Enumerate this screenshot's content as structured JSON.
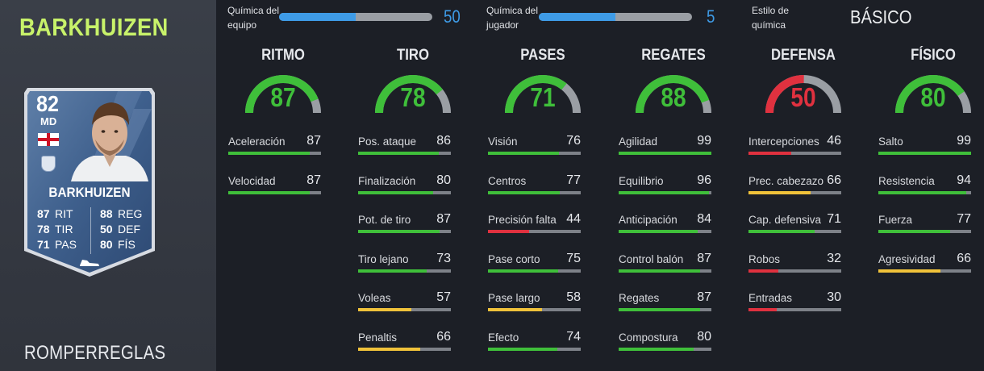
{
  "player": {
    "name": "BARKHUIZEN",
    "card_name": "BARKHUIZEN",
    "rating": "82",
    "position": "MD",
    "chem_style": "ROMPERREGLAS",
    "card_stats": [
      {
        "v1": "87",
        "l1": "RIT",
        "v2": "88",
        "l2": "REG"
      },
      {
        "v1": "78",
        "l1": "TIR",
        "v2": "50",
        "l2": "DEF"
      },
      {
        "v1": "71",
        "l1": "PAS",
        "v2": "80",
        "l2": "FÍS"
      }
    ]
  },
  "chemistry": {
    "team_label_1": "Química del",
    "team_label_2": "equipo",
    "team_value": "50",
    "team_fraction": 0.5,
    "player_label_1": "Química del",
    "player_label_2": "jugador",
    "player_value": "5",
    "player_fraction": 0.5,
    "style_label_1": "Estilo de",
    "style_label_2": "química",
    "style_value": "BÁSICO"
  },
  "colors": {
    "green": "#3fbf3a",
    "yellow": "#f0c23a",
    "red": "#e0313f",
    "blue": "#3e9be6",
    "lime_name": "#c8f26a"
  },
  "categories": [
    {
      "title": "RITMO",
      "value": "87",
      "color": "green",
      "stats": [
        {
          "label": "Aceleración",
          "value": "87",
          "color": "green"
        },
        {
          "label": "Velocidad",
          "value": "87",
          "color": "green"
        }
      ]
    },
    {
      "title": "TIRO",
      "value": "78",
      "color": "green",
      "stats": [
        {
          "label": "Pos. ataque",
          "value": "86",
          "color": "green"
        },
        {
          "label": "Finalización",
          "value": "80",
          "color": "green"
        },
        {
          "label": "Pot. de tiro",
          "value": "87",
          "color": "green"
        },
        {
          "label": "Tiro lejano",
          "value": "73",
          "color": "green"
        },
        {
          "label": "Voleas",
          "value": "57",
          "color": "yellow"
        },
        {
          "label": "Penaltis",
          "value": "66",
          "color": "yellow"
        }
      ]
    },
    {
      "title": "PASES",
      "value": "71",
      "color": "green",
      "stats": [
        {
          "label": "Visión",
          "value": "76",
          "color": "green"
        },
        {
          "label": "Centros",
          "value": "77",
          "color": "green"
        },
        {
          "label": "Precisión falta",
          "value": "44",
          "color": "red"
        },
        {
          "label": "Pase corto",
          "value": "75",
          "color": "green"
        },
        {
          "label": "Pase largo",
          "value": "58",
          "color": "yellow"
        },
        {
          "label": "Efecto",
          "value": "74",
          "color": "green"
        }
      ]
    },
    {
      "title": "REGATES",
      "value": "88",
      "color": "green",
      "stats": [
        {
          "label": "Agilidad",
          "value": "99",
          "color": "green"
        },
        {
          "label": "Equilibrio",
          "value": "96",
          "color": "green"
        },
        {
          "label": "Anticipación",
          "value": "84",
          "color": "green"
        },
        {
          "label": "Control balón",
          "value": "87",
          "color": "green"
        },
        {
          "label": "Regates",
          "value": "87",
          "color": "green"
        },
        {
          "label": "Compostura",
          "value": "80",
          "color": "green"
        }
      ]
    },
    {
      "title": "DEFENSA",
      "value": "50",
      "color": "red",
      "stats": [
        {
          "label": "Intercepciones",
          "value": "46",
          "color": "red"
        },
        {
          "label": "Prec. cabezazo",
          "value": "66",
          "color": "yellow"
        },
        {
          "label": "Cap. defensiva",
          "value": "71",
          "color": "green"
        },
        {
          "label": "Robos",
          "value": "32",
          "color": "red"
        },
        {
          "label": "Entradas",
          "value": "30",
          "color": "red"
        }
      ]
    },
    {
      "title": "FÍSICO",
      "value": "80",
      "color": "green",
      "stats": [
        {
          "label": "Salto",
          "value": "99",
          "color": "green"
        },
        {
          "label": "Resistencia",
          "value": "94",
          "color": "green"
        },
        {
          "label": "Fuerza",
          "value": "77",
          "color": "green"
        },
        {
          "label": "Agresividad",
          "value": "66",
          "color": "yellow"
        }
      ]
    }
  ]
}
